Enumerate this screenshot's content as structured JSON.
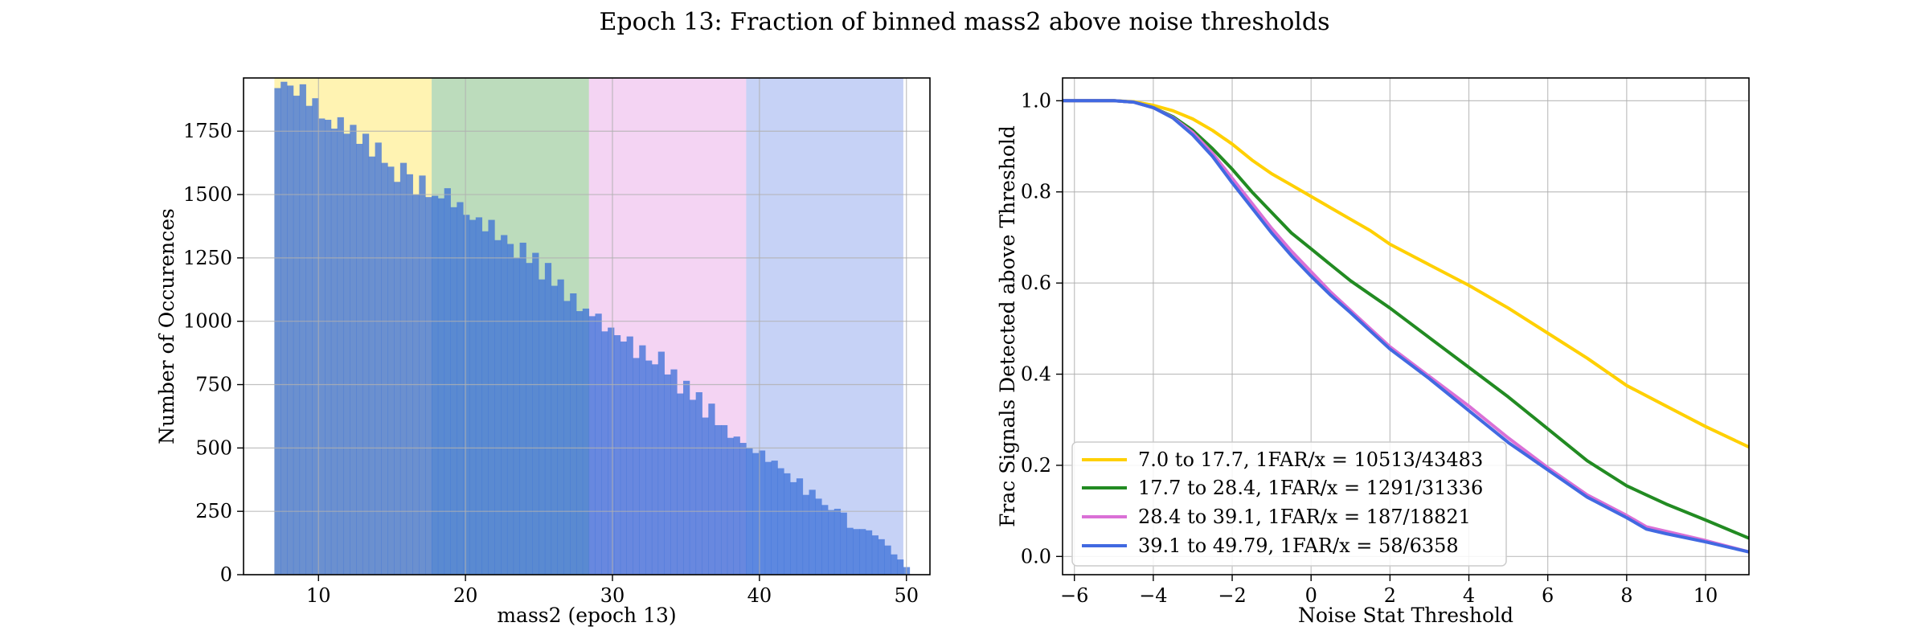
{
  "figure": {
    "title": "Epoch 13: Fraction of binned mass2 above noise thresholds"
  },
  "chart_data": [
    {
      "type": "bar",
      "subtype": "histogram",
      "xlabel": "mass2 (epoch 13)",
      "ylabel": "Number of Occurences",
      "xlim": [
        4.9,
        51.6
      ],
      "ylim": [
        0,
        1960
      ],
      "xticks": [
        10,
        20,
        30,
        40,
        50
      ],
      "yticks": [
        0,
        250,
        500,
        750,
        1000,
        1250,
        1500,
        1750
      ],
      "grid": true,
      "bin_start": 7.0,
      "bin_width": 0.4279,
      "values": [
        1920,
        1945,
        1930,
        1890,
        1935,
        1850,
        1880,
        1800,
        1795,
        1760,
        1805,
        1740,
        1775,
        1700,
        1740,
        1650,
        1705,
        1625,
        1610,
        1550,
        1625,
        1580,
        1500,
        1575,
        1490,
        1495,
        1485,
        1525,
        1450,
        1470,
        1420,
        1400,
        1410,
        1355,
        1400,
        1320,
        1340,
        1305,
        1250,
        1310,
        1230,
        1270,
        1165,
        1230,
        1140,
        1165,
        1080,
        1110,
        1040,
        1050,
        1020,
        1030,
        960,
        975,
        945,
        920,
        940,
        855,
        905,
        845,
        830,
        880,
        790,
        810,
        715,
        765,
        690,
        720,
        620,
        675,
        590,
        590,
        540,
        545,
        520,
        500,
        480,
        490,
        445,
        450,
        420,
        400,
        365,
        380,
        315,
        335,
        300,
        275,
        255,
        260,
        245,
        185,
        180,
        180,
        175,
        155,
        140,
        115,
        80,
        60,
        30
      ],
      "bar_color": "#3a6fd8",
      "bands": [
        {
          "from": 7.0,
          "to": 17.7,
          "color": "#ffd700"
        },
        {
          "from": 17.7,
          "to": 28.4,
          "color": "#228b22"
        },
        {
          "from": 28.4,
          "to": 39.1,
          "color": "#da70d6"
        },
        {
          "from": 39.1,
          "to": 49.79,
          "color": "#4169e1"
        }
      ]
    },
    {
      "type": "line",
      "xlabel": "Noise Stat Threshold",
      "ylabel": "Frac Signals Detected above Threshold",
      "xlim": [
        -6.3,
        11.1
      ],
      "ylim": [
        -0.04,
        1.05
      ],
      "xticks": [
        -6,
        -4,
        -2,
        0,
        2,
        4,
        6,
        8,
        10
      ],
      "yticks": [
        0.0,
        0.2,
        0.4,
        0.6,
        0.8,
        1.0
      ],
      "grid": true,
      "legend": "lower-left",
      "series": [
        {
          "name": "7.0 to 17.7, 1FAR/x = 10513/43483",
          "color": "#ffd000",
          "x": [
            -6.3,
            -5,
            -4.5,
            -4,
            -3.5,
            -3,
            -2.5,
            -2,
            -1.5,
            -1,
            -0.5,
            0,
            0.5,
            1,
            1.5,
            2,
            3,
            4,
            5,
            6,
            7,
            8,
            9,
            10,
            11.1
          ],
          "y": [
            1.0,
            1.0,
            0.998,
            0.99,
            0.978,
            0.96,
            0.935,
            0.905,
            0.87,
            0.84,
            0.815,
            0.79,
            0.765,
            0.74,
            0.715,
            0.685,
            0.64,
            0.595,
            0.545,
            0.49,
            0.435,
            0.375,
            0.33,
            0.285,
            0.24
          ]
        },
        {
          "name": "17.7 to 28.4, 1FAR/x = 1291/31336",
          "color": "#228b22",
          "x": [
            -6.3,
            -5,
            -4.5,
            -4,
            -3.5,
            -3,
            -2.5,
            -2,
            -1.5,
            -1,
            -0.5,
            0,
            0.5,
            1,
            1.5,
            2,
            3,
            4,
            5,
            6,
            7,
            8,
            8.5,
            9,
            10,
            11.1
          ],
          "y": [
            1.0,
            1.0,
            0.997,
            0.985,
            0.965,
            0.935,
            0.895,
            0.85,
            0.8,
            0.755,
            0.71,
            0.675,
            0.64,
            0.605,
            0.575,
            0.545,
            0.48,
            0.415,
            0.35,
            0.28,
            0.21,
            0.155,
            0.135,
            0.115,
            0.08,
            0.04
          ]
        },
        {
          "name": "28.4 to 39.1, 1FAR/x = 187/18821",
          "color": "#da70d6",
          "x": [
            -6.3,
            -5,
            -4.5,
            -4,
            -3.5,
            -3,
            -2.5,
            -2,
            -1.5,
            -1,
            -0.5,
            0,
            0.5,
            1,
            1.5,
            2,
            3,
            4,
            5,
            6,
            7,
            8,
            8.5,
            9,
            10,
            11.1
          ],
          "y": [
            1.0,
            1.0,
            0.997,
            0.985,
            0.963,
            0.93,
            0.885,
            0.83,
            0.775,
            0.72,
            0.67,
            0.625,
            0.58,
            0.54,
            0.5,
            0.46,
            0.395,
            0.33,
            0.26,
            0.195,
            0.135,
            0.09,
            0.065,
            0.055,
            0.035,
            0.01
          ]
        },
        {
          "name": "39.1 to 49.79, 1FAR/x = 58/6358",
          "color": "#4169e1",
          "x": [
            -6.3,
            -5,
            -4.5,
            -4,
            -3.5,
            -3,
            -2.5,
            -2,
            -1.5,
            -1,
            -0.5,
            0,
            0.5,
            1,
            1.5,
            2,
            3,
            4,
            5,
            6,
            7,
            8,
            8.5,
            9,
            10,
            11.1
          ],
          "y": [
            1.0,
            1.0,
            0.997,
            0.985,
            0.962,
            0.925,
            0.878,
            0.82,
            0.765,
            0.71,
            0.66,
            0.615,
            0.573,
            0.535,
            0.495,
            0.455,
            0.39,
            0.32,
            0.25,
            0.19,
            0.13,
            0.085,
            0.06,
            0.05,
            0.032,
            0.01
          ]
        }
      ]
    }
  ]
}
